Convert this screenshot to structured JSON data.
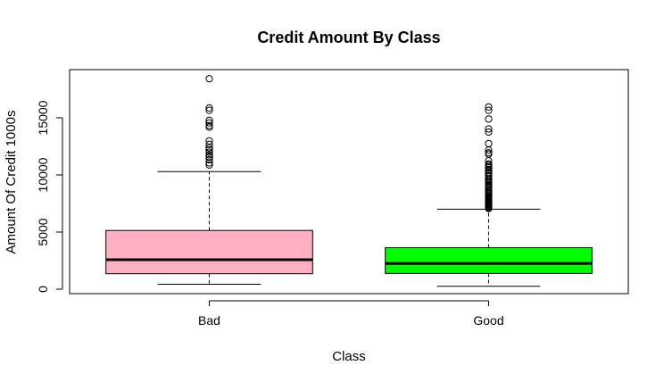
{
  "chart_data": {
    "type": "boxplot",
    "title": "Credit Amount By Class",
    "xlabel": "Class",
    "ylabel": "Amount Of Credit 1000s",
    "ylim": [
      -300,
      19000
    ],
    "yticks": [
      0,
      5000,
      10000,
      15000
    ],
    "grid": false,
    "legend": "none",
    "categories": [
      "Bad",
      "Good"
    ],
    "boxes": [
      {
        "name": "Bad",
        "color": "#ffb0c3",
        "whisker_low": 433,
        "q1": 1352,
        "median": 2574,
        "q3": 5141,
        "whisker_high": 10297,
        "outliers": [
          10875,
          11054,
          11328,
          11560,
          11590,
          11760,
          11998,
          12204,
          12389,
          12680,
          12976,
          14179,
          14318,
          14555,
          14782,
          15653,
          15857,
          18424
        ]
      },
      {
        "name": "Good",
        "color": "#00ff00",
        "whisker_low": 250,
        "q1": 1376,
        "median": 2244,
        "q3": 3635,
        "whisker_high": 6999,
        "outliers": [
          7057,
          7127,
          7166,
          7228,
          7297,
          7308,
          7393,
          7418,
          7472,
          7485,
          7511,
          7596,
          7629,
          7678,
          7721,
          7758,
          7814,
          7865,
          7882,
          7980,
          8065,
          8133,
          8229,
          8335,
          8358,
          8386,
          8471,
          8588,
          8613,
          8648,
          8858,
          8947,
          9034,
          9157,
          9271,
          9283,
          9398,
          9436,
          9566,
          9572,
          9629,
          9857,
          9960,
          10127,
          10144,
          10222,
          10366,
          10477,
          10623,
          10722,
          10875,
          10961,
          11238,
          11816,
          11938,
          12169,
          12749,
          13756,
          14027,
          14896,
          15653,
          15945
        ]
      }
    ]
  }
}
